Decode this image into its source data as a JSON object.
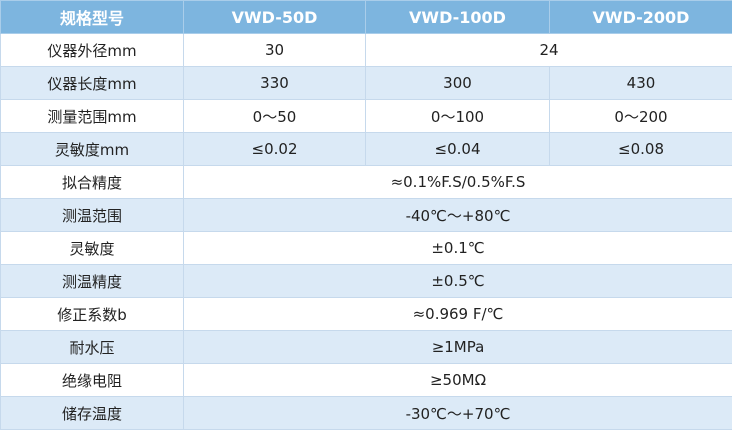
{
  "table": {
    "header": [
      "规格型号",
      "VWD-50D",
      "VWD-100D",
      "VWD-200D"
    ],
    "rows": [
      [
        "仪器外径mm",
        "30",
        "24"
      ],
      [
        "仪器长度mm",
        "330",
        "300",
        "430"
      ],
      [
        "测量范围mm",
        "0～50",
        "0～100",
        "0～200"
      ],
      [
        "灵敏度mm",
        "≤0.02",
        "≤0.04",
        "≤0.08"
      ],
      [
        "拟合精度",
        "≈0.1%F.S/0.5%F.S"
      ],
      [
        "测温范围",
        "-40℃～+80℃"
      ],
      [
        "灵敏度",
        "±0.1℃"
      ],
      [
        "测温精度",
        "±0.5℃"
      ],
      [
        "修正系数b",
        "≈0.969 F/℃"
      ],
      [
        "耐水压",
        "≥1MPa"
      ],
      [
        "绝缘电阻",
        "≥50MΩ"
      ],
      [
        "储存温度",
        "-30℃～+70℃"
      ]
    ]
  }
}
